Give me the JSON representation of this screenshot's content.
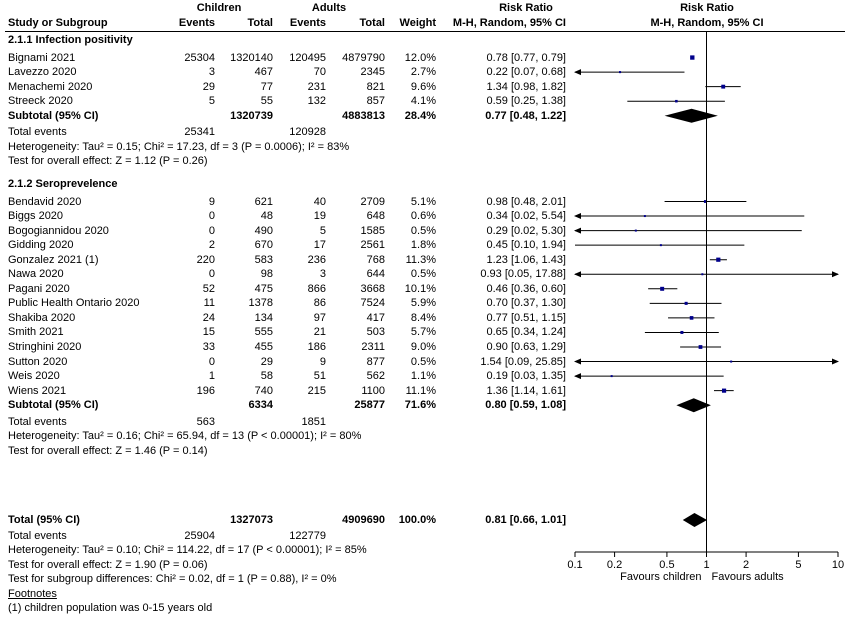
{
  "header": {
    "group1": "Children",
    "group2": "Adults",
    "risk_ratio_1": "Risk Ratio",
    "risk_ratio_2": "Risk Ratio",
    "study": "Study or Subgroup",
    "events1": "Events",
    "total1": "Total",
    "events2": "Events",
    "total2": "Total",
    "weight": "Weight",
    "method_1": "M-H, Random, 95% CI",
    "method_2": "M-H, Random, 95% CI"
  },
  "subgroups": [
    {
      "title": "2.1.1 Infection positivity",
      "studies": [
        {
          "name": "Bignami 2021",
          "e1": "25304",
          "t1": "1320140",
          "e2": "120495",
          "t2": "4879790",
          "w": "12.0%",
          "rr": 0.78,
          "lo": 0.77,
          "hi": 0.79,
          "ci": "0.78 [0.77, 0.79]"
        },
        {
          "name": "Lavezzo 2020",
          "e1": "3",
          "t1": "467",
          "e2": "70",
          "t2": "2345",
          "w": "2.7%",
          "rr": 0.22,
          "lo": 0.07,
          "hi": 0.68,
          "ci": "0.22 [0.07, 0.68]"
        },
        {
          "name": "Menachemi 2020",
          "e1": "29",
          "t1": "77",
          "e2": "231",
          "t2": "821",
          "w": "9.6%",
          "rr": 1.34,
          "lo": 0.98,
          "hi": 1.82,
          "ci": "1.34 [0.98, 1.82]"
        },
        {
          "name": "Streeck 2020",
          "e1": "5",
          "t1": "55",
          "e2": "132",
          "t2": "857",
          "w": "4.1%",
          "rr": 0.59,
          "lo": 0.25,
          "hi": 1.38,
          "ci": "0.59 [0.25, 1.38]"
        }
      ],
      "subtotal": {
        "label": "Subtotal (95% CI)",
        "t1": "1320739",
        "t2": "4883813",
        "w": "28.4%",
        "rr": 0.77,
        "lo": 0.48,
        "hi": 1.22,
        "ci": "0.77 [0.48, 1.22]"
      },
      "total_events": {
        "label": "Total events",
        "e1": "25341",
        "e2": "120928"
      },
      "heterogeneity": "Heterogeneity: Tau² = 0.15; Chi² = 17.23, df = 3 (P = 0.0006); I² = 83%",
      "overall": "Test for overall effect: Z = 1.12 (P = 0.26)"
    },
    {
      "title": "2.1.2 Seroprevelence",
      "studies": [
        {
          "name": "Bendavid 2020",
          "e1": "9",
          "t1": "621",
          "e2": "40",
          "t2": "2709",
          "w": "5.1%",
          "rr": 0.98,
          "lo": 0.48,
          "hi": 2.01,
          "ci": "0.98 [0.48, 2.01]"
        },
        {
          "name": "Biggs 2020",
          "e1": "0",
          "t1": "48",
          "e2": "19",
          "t2": "648",
          "w": "0.6%",
          "rr": 0.34,
          "lo": 0.02,
          "hi": 5.54,
          "ci": "0.34 [0.02, 5.54]"
        },
        {
          "name": "Bogogiannidou 2020",
          "e1": "0",
          "t1": "490",
          "e2": "5",
          "t2": "1585",
          "w": "0.5%",
          "rr": 0.29,
          "lo": 0.02,
          "hi": 5.3,
          "ci": "0.29 [0.02, 5.30]"
        },
        {
          "name": "Gidding 2020",
          "e1": "2",
          "t1": "670",
          "e2": "17",
          "t2": "2561",
          "w": "1.8%",
          "rr": 0.45,
          "lo": 0.1,
          "hi": 1.94,
          "ci": "0.45 [0.10, 1.94]"
        },
        {
          "name": "Gonzalez 2021 (1)",
          "e1": "220",
          "t1": "583",
          "e2": "236",
          "t2": "768",
          "w": "11.3%",
          "rr": 1.23,
          "lo": 1.06,
          "hi": 1.43,
          "ci": "1.23 [1.06, 1.43]"
        },
        {
          "name": "Nawa 2020",
          "e1": "0",
          "t1": "98",
          "e2": "3",
          "t2": "644",
          "w": "0.5%",
          "rr": 0.93,
          "lo": 0.05,
          "hi": 17.88,
          "ci": "0.93 [0.05, 17.88]"
        },
        {
          "name": "Pagani 2020",
          "e1": "52",
          "t1": "475",
          "e2": "866",
          "t2": "3668",
          "w": "10.1%",
          "rr": 0.46,
          "lo": 0.36,
          "hi": 0.6,
          "ci": "0.46 [0.36, 0.60]"
        },
        {
          "name": "Public Health Ontario 2020",
          "e1": "11",
          "t1": "1378",
          "e2": "86",
          "t2": "7524",
          "w": "5.9%",
          "rr": 0.7,
          "lo": 0.37,
          "hi": 1.3,
          "ci": "0.70 [0.37, 1.30]"
        },
        {
          "name": "Shakiba 2020",
          "e1": "24",
          "t1": "134",
          "e2": "97",
          "t2": "417",
          "w": "8.4%",
          "rr": 0.77,
          "lo": 0.51,
          "hi": 1.15,
          "ci": "0.77 [0.51, 1.15]"
        },
        {
          "name": "Smith 2021",
          "e1": "15",
          "t1": "555",
          "e2": "21",
          "t2": "503",
          "w": "5.7%",
          "rr": 0.65,
          "lo": 0.34,
          "hi": 1.24,
          "ci": "0.65 [0.34, 1.24]"
        },
        {
          "name": "Stringhini 2020",
          "e1": "33",
          "t1": "455",
          "e2": "186",
          "t2": "2311",
          "w": "9.0%",
          "rr": 0.9,
          "lo": 0.63,
          "hi": 1.29,
          "ci": "0.90 [0.63, 1.29]"
        },
        {
          "name": "Sutton 2020",
          "e1": "0",
          "t1": "29",
          "e2": "9",
          "t2": "877",
          "w": "0.5%",
          "rr": 1.54,
          "lo": 0.09,
          "hi": 25.85,
          "ci": "1.54 [0.09, 25.85]"
        },
        {
          "name": "Weis 2020",
          "e1": "1",
          "t1": "58",
          "e2": "51",
          "t2": "562",
          "w": "1.1%",
          "rr": 0.19,
          "lo": 0.03,
          "hi": 1.35,
          "ci": "0.19 [0.03, 1.35]"
        },
        {
          "name": "Wiens 2021",
          "e1": "196",
          "t1": "740",
          "e2": "215",
          "t2": "1100",
          "w": "11.1%",
          "rr": 1.36,
          "lo": 1.14,
          "hi": 1.61,
          "ci": "1.36 [1.14, 1.61]"
        }
      ],
      "subtotal": {
        "label": "Subtotal (95% CI)",
        "t1": "6334",
        "t2": "25877",
        "w": "71.6%",
        "rr": 0.8,
        "lo": 0.59,
        "hi": 1.08,
        "ci": "0.80 [0.59, 1.08]"
      },
      "total_events": {
        "label": "Total events",
        "e1": "563",
        "e2": "1851"
      },
      "heterogeneity": "Heterogeneity: Tau² = 0.16; Chi² = 65.94, df = 13 (P < 0.00001); I² = 80%",
      "overall": "Test for overall effect: Z = 1.46 (P = 0.14)"
    }
  ],
  "total": {
    "label": "Total (95% CI)",
    "t1": "1327073",
    "t2": "4909690",
    "w": "100.0%",
    "rr": 0.81,
    "lo": 0.66,
    "hi": 1.01,
    "ci": "0.81 [0.66, 1.01]"
  },
  "total_events": {
    "label": "Total events",
    "e1": "25904",
    "e2": "122779"
  },
  "total_heterogeneity": "Heterogeneity: Tau² = 0.10; Chi² = 114.22, df = 17 (P < 0.00001); I² = 85%",
  "total_overall": "Test for overall effect: Z = 1.90 (P = 0.06)",
  "subgroup_diff": "Test for subgroup differences: Chi² = 0.02, df = 1 (P = 0.88), I² = 0%",
  "footnotes_label": "Footnotes",
  "footnote_1": "(1) children population was 0-15 years old",
  "axis": {
    "ticks": [
      0.1,
      0.2,
      0.5,
      1,
      2,
      5,
      10
    ],
    "tick_labels": [
      "0.1",
      "0.2",
      "0.5",
      "1",
      "2",
      "5",
      "10"
    ],
    "favours_left": "Favours children",
    "favours_right": "Favours adults",
    "range": [
      0.1,
      10
    ],
    "scale": "log"
  },
  "chart_data": {
    "type": "forest",
    "scale": "log",
    "xlim": [
      0.1,
      10
    ],
    "null_line": 1,
    "colors": {
      "square": "#00008b",
      "line": "#000000",
      "diamond": "#000000"
    }
  }
}
